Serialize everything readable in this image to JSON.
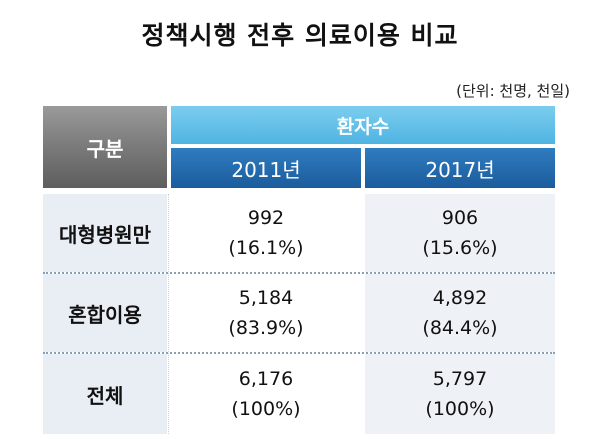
{
  "title": "정책시행 전후 의료이용 비교",
  "unit": "(단위: 천명, 천일)",
  "table": {
    "header": {
      "category": "구분",
      "group": "환자수",
      "years": [
        "2011년",
        "2017년"
      ]
    },
    "rows": [
      {
        "label": "대형병원만",
        "values": [
          {
            "count": "992",
            "pct": "(16.1%)"
          },
          {
            "count": "906",
            "pct": "(15.6%)"
          }
        ]
      },
      {
        "label": "혼합이용",
        "values": [
          {
            "count": "5,184",
            "pct": "(83.9%)"
          },
          {
            "count": "4,892",
            "pct": "(84.4%)"
          }
        ]
      },
      {
        "label": "전체",
        "values": [
          {
            "count": "6,176",
            "pct": "(100%)"
          },
          {
            "count": "5,797",
            "pct": "(100%)"
          }
        ]
      }
    ]
  },
  "colors": {
    "header_gray": "#7a7a7a",
    "header_light_blue": "#5bbbe6",
    "header_dark_blue": "#24689f",
    "row_label_bg": "#e9eef4",
    "shaded_column_bg": "#eef2f6"
  }
}
